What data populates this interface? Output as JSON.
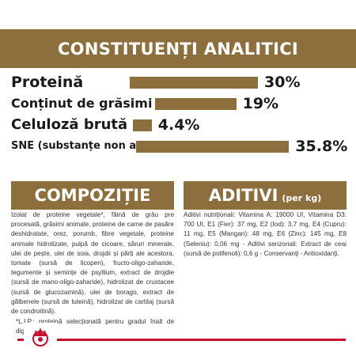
{
  "header": {
    "title": "CONSTITUENȚI ANALITICI"
  },
  "analysis": {
    "rows": [
      {
        "label": "Proteină",
        "value": "30%",
        "percent": 30
      },
      {
        "label": "Conținut de grăsimi",
        "value": "19%",
        "percent": 19
      },
      {
        "label": "Celuloză brută",
        "value": "4.4%",
        "percent": 4.4
      },
      {
        "label": "SNE (substanțe non azotate)",
        "value": "35.8%",
        "percent": 35.8
      }
    ]
  },
  "composition": {
    "title": "COMPOZIȚIE",
    "text": "Izolat de proteine vegetale*, făină de grâu pre procesată, grăsimi animale, proteine de carne de pasăre deshidratate, orez, porumb, fibre vegetale, proteine animale hidrolizate, pulpă de cicoare, săruri minerale, ulei de pește, ulei de soia, drojdii și părți ale acestora, tomate (sursă de licopen), fructo-oligo-zaharide, tegumente și semințe de psyllium, extract de drojdie (sursă de mano-oligo-zaharide), hidrolizat de crustacee (sursă de glucozamină), ulei de borago, extract de gălbenele (sursă de luteină), hidrolizat de cartilaj (sursă de condroitină).",
    "footnote": "*L.I.P.: proteină selecționată pentru gradul înalt de digestibilitate."
  },
  "additives": {
    "title": "ADITIVI",
    "unit": "(per kg)",
    "text": "Aditivi nutriționali: Vitamina A: 19000 UI, Vitamina D3: 700 UI, E1 (Fier): 37 mg, E2 (Iod): 3,7 mg, E4 (Cupru): 11 mg, E5 (Mangan): 48 mg, E6 (Zinc): 145 mg, E8 (Seleniu): 0,06 mg - Aditivi senzoriali: Extract de ceai (sursă de polifenoli): 0,6 g - Conservanți - Antioxidanți."
  },
  "brand": {
    "logo_icon": "royal-canin-crown-icon",
    "accent": "#c8102e",
    "gold": "#8c6f3c"
  }
}
